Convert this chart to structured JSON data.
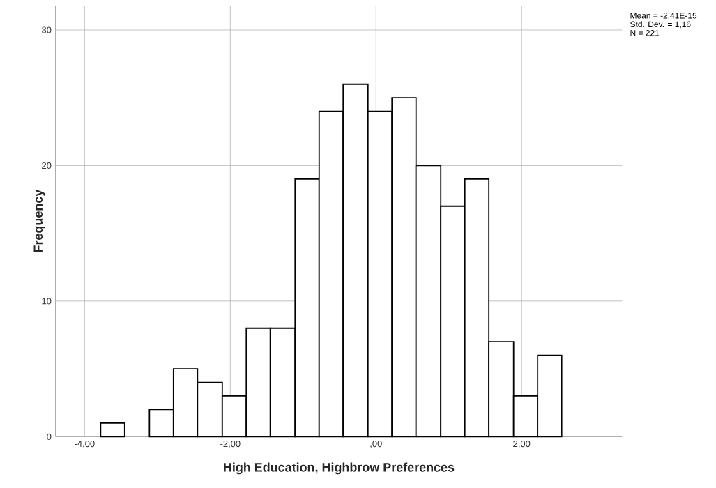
{
  "chart_data": {
    "type": "histogram",
    "xlabel": "High Education, Highbrow Preferences",
    "ylabel": "Frequency",
    "annotations": [
      "Mean = -2,41E-15",
      "Std. Dev. = 1,16",
      "N = 221"
    ],
    "bins": [
      -3.78,
      -3.45,
      -3.11,
      -2.78,
      -2.45,
      -2.11,
      -1.78,
      -1.45,
      -1.11,
      -0.78,
      -0.45,
      -0.11,
      0.22,
      0.55,
      0.89,
      1.22,
      1.55,
      1.89,
      2.22,
      2.55
    ],
    "values": [
      1,
      0,
      2,
      5,
      4,
      3,
      8,
      8,
      19,
      24,
      26,
      24,
      25,
      20,
      17,
      19,
      7,
      3,
      6
    ],
    "color": "#ffffff",
    "xlim": [
      -4.4,
      3.38
    ],
    "ylim": [
      0,
      31.8
    ],
    "xticks": [
      {
        "value": -4,
        "label": "-4,00"
      },
      {
        "value": -2,
        "label": "-2,00"
      },
      {
        "value": 0,
        "label": ",00"
      },
      {
        "value": 2,
        "label": "2,00"
      }
    ],
    "yticks": [
      0,
      10,
      20,
      30
    ],
    "grid": true
  }
}
